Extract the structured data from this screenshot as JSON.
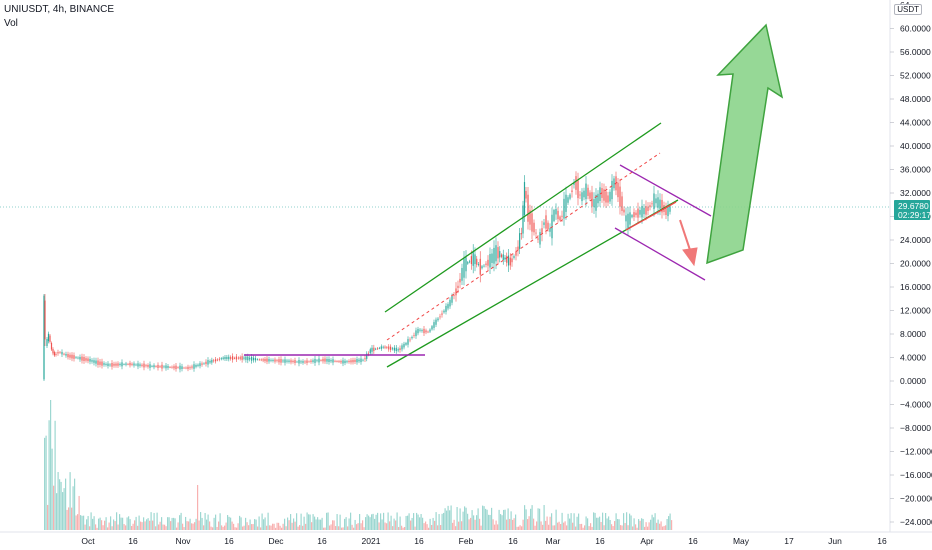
{
  "header": {
    "symbol": "UNIUSDT, 4h, BINANCE",
    "volume_label": "Vol",
    "currency_badge": "USDT"
  },
  "price_axis": {
    "labels": [
      "60.0000",
      "56.0000",
      "52.0000",
      "48.0000",
      "44.0000",
      "40.0000",
      "36.0000",
      "32.0000",
      "28.0000",
      "24.0000",
      "20.0000",
      "16.0000",
      "12.0000",
      "8.0000",
      "4.0000",
      "0.0000",
      "−4.0000",
      "−8.0000",
      "−12.0000",
      "−16.0000",
      "−20.0000",
      "−24.0000"
    ],
    "values": [
      60,
      56,
      52,
      48,
      44,
      40,
      36,
      32,
      28,
      24,
      20,
      16,
      12,
      8,
      4,
      0,
      -4,
      -8,
      -12,
      -16,
      -20,
      -24
    ],
    "top_partial": "64"
  },
  "time_axis": {
    "labels": [
      "Oct",
      "16",
      "Nov",
      "16",
      "Dec",
      "16",
      "2021",
      "16",
      "Feb",
      "16",
      "Mar",
      "16",
      "Apr",
      "16",
      "May",
      "17",
      "Jun",
      "16"
    ]
  },
  "last_price": {
    "value": "29.6780",
    "countdown": "02:29:17",
    "color": "#26a69a"
  },
  "colors": {
    "channel": "#1e9a1e",
    "channel_mid": "#f04646",
    "purple": "#9c27b0",
    "up_candle": "#26a69a",
    "down_candle": "#ef5350",
    "big_arrow_fill": "#8bd48b",
    "big_arrow_stroke": "#3fa33f",
    "small_arrow": "#f07878"
  },
  "chart_data": {
    "type": "candlestick",
    "title": "UNIUSDT, 4h, BINANCE",
    "x": [
      "Oct",
      "16",
      "Nov",
      "16",
      "Dec",
      "16",
      "2021",
      "16",
      "Feb",
      "16",
      "Mar",
      "16",
      "Apr"
    ],
    "approx_close": [
      5.5,
      4.2,
      3.0,
      2.5,
      3.8,
      3.6,
      4.8,
      8.5,
      18.5,
      22.0,
      31.0,
      29.0,
      29.68
    ],
    "ylim": [
      -25,
      64
    ],
    "series": [
      {
        "values": [
          5.5,
          4.2,
          3.0,
          2.5,
          3.8,
          3.6,
          4.8,
          8.5,
          18.5,
          22.0,
          31.0,
          29.0,
          29.68
        ]
      }
    ],
    "last": 29.678,
    "annotations": [
      "ascending channel",
      "descending channel",
      "upward projection arrow",
      "downward arrow"
    ]
  }
}
